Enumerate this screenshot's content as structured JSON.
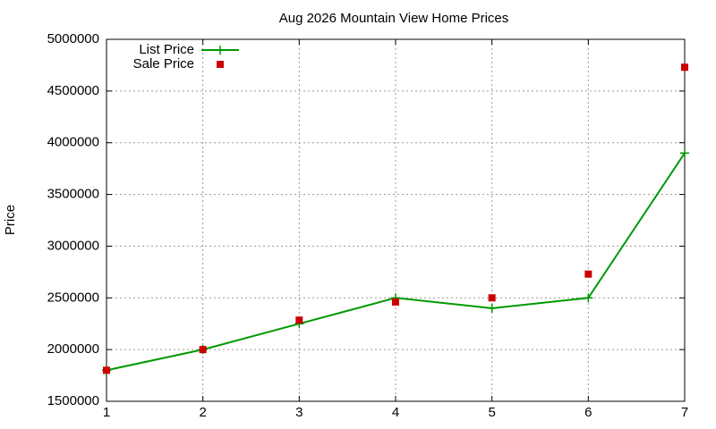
{
  "chart_data": {
    "type": "line",
    "title": "Aug 2026 Mountain View Home Prices",
    "y_label": "Price",
    "x": [
      1,
      2,
      3,
      4,
      5,
      6,
      7
    ],
    "series": [
      {
        "name": "List Price",
        "color": "#009900",
        "style": "linespoints",
        "values": [
          1800000,
          2000000,
          2250000,
          2500000,
          2400000,
          2500000,
          3900000
        ]
      },
      {
        "name": "Sale Price",
        "color": "#cc0000",
        "style": "points",
        "values": [
          1800000,
          2000000,
          2285000,
          2460000,
          2500000,
          2730000,
          4730000
        ]
      }
    ],
    "xlim": [
      1,
      7
    ],
    "xticks": [
      1,
      2,
      3,
      4,
      5,
      6,
      7
    ],
    "ylim": [
      1500000,
      5000000
    ],
    "yticks": [
      1500000,
      2000000,
      2500000,
      3000000,
      3500000,
      4000000,
      4500000,
      5000000
    ],
    "grid": true,
    "legend": "top-left"
  }
}
